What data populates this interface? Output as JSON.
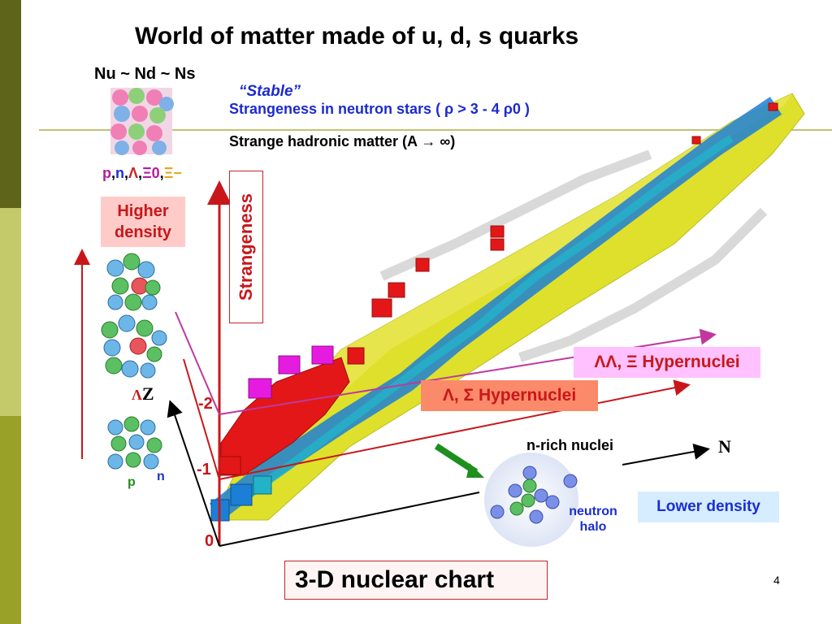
{
  "slide": {
    "title": "World of matter made of u, d, s quarks",
    "page_number": "4"
  },
  "labels": {
    "quark_ratio": "Nu ~ Nd ~ Ns",
    "stable": "“Stable”",
    "neutron_stars": "Strangeness in neutron stars ( ρ > 3 - 4 ρ0 )",
    "hadronic_matter": "Strange hadronic matter (A → ∞)",
    "baryons": {
      "p": "p",
      "n": "n",
      "lambda": "Λ",
      "xi0": "Ξ0",
      "xim": "Ξ−",
      "comma": ","
    },
    "higher_density_1": "Higher",
    "higher_density_2": "density",
    "strangeness_axis": "Strangeness",
    "ll_xi_hypernuclei": "ΛΛ, Ξ Hypernuclei",
    "l_sigma_hypernuclei": "Λ, Σ Hypernuclei",
    "n_rich": "n-rich nuclei",
    "n_axis": "N",
    "z_axis_lambda": "Λ",
    "z_axis": "Z",
    "s_minus2": "-2",
    "s_minus1": "-1",
    "s_zero": "0",
    "proton": "p",
    "neutron": "n",
    "neutron_halo_1": "neutron",
    "neutron_halo_2": "halo",
    "lower_density": "Lower density",
    "chart_label": "3-D nuclear chart"
  },
  "colors": {
    "sidebar_dark": "#5e6419",
    "sidebar_light": "#c4c96a",
    "sidebar_mid": "#9aa128",
    "accent_red": "#c8171b",
    "accent_blue": "#1a2ed0",
    "proton_green": "#2a8b1f",
    "hypernuclei_pink": "#ffc1ff",
    "hypernuclei_orange": "#fb8a6a",
    "chart_yellow": "#dfe02c",
    "chart_blue": "#1c7fd6",
    "chart_cyan": "#23b3c8"
  }
}
